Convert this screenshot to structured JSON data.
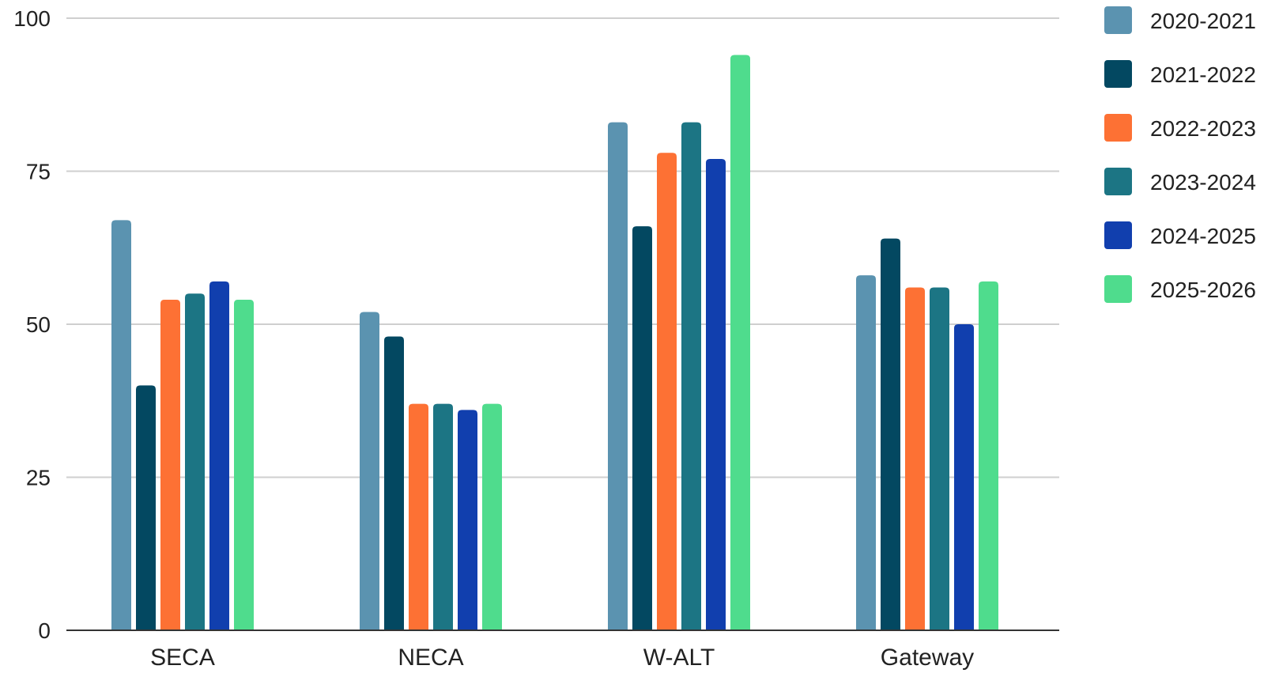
{
  "chart_data": {
    "type": "bar",
    "title": "",
    "xlabel": "",
    "ylabel": "",
    "ylim": [
      0,
      100
    ],
    "yticks": [
      0,
      25,
      50,
      75,
      100
    ],
    "ytick_labels": [
      "0",
      "25",
      "50",
      "75",
      "100"
    ],
    "grid": true,
    "legend_position": "right",
    "categories": [
      "SECA",
      "NECA",
      "W-ALT",
      "Gateway"
    ],
    "series": [
      {
        "name": "2020-2021",
        "color": "#5b93b0",
        "values": [
          67,
          52,
          83,
          58
        ]
      },
      {
        "name": "2021-2022",
        "color": "#034861",
        "values": [
          40,
          48,
          66,
          64
        ]
      },
      {
        "name": "2022-2023",
        "color": "#fd7134",
        "values": [
          54,
          37,
          78,
          56
        ]
      },
      {
        "name": "2023-2024",
        "color": "#1c7584",
        "values": [
          55,
          37,
          83,
          56
        ]
      },
      {
        "name": "2024-2025",
        "color": "#113fae",
        "values": [
          57,
          36,
          77,
          50
        ]
      },
      {
        "name": "2025-2026",
        "color": "#4fdc8d",
        "values": [
          54,
          37,
          94,
          57
        ]
      }
    ]
  }
}
